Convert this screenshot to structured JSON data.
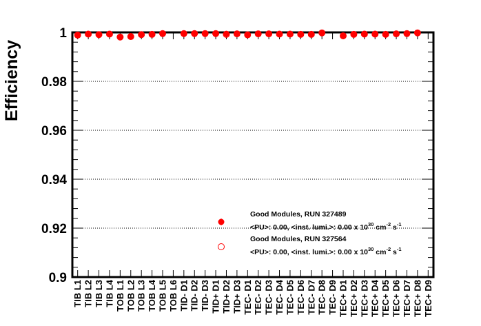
{
  "chart_data": {
    "type": "scatter",
    "ylabel": "Efficiency",
    "ylim": [
      0.9,
      1.0
    ],
    "yticks": [
      0.9,
      0.92,
      0.94,
      0.96,
      0.98,
      1.0
    ],
    "ytick_labels": [
      "0.9",
      "0.92",
      "0.94",
      "0.96",
      "0.98",
      "1"
    ],
    "grid": "horizontal dotted",
    "categories": [
      "TIB L1",
      "TIB L2",
      "TIB L3",
      "TIB L4",
      "TOB L1",
      "TOB L2",
      "TOB L3",
      "TOB L4",
      "TOB L5",
      "TOB L6",
      "TID- D1",
      "TID- D2",
      "TID- D3",
      "TID+ D1",
      "TID+ D2",
      "TID+ D3",
      "TEC- D1",
      "TEC- D2",
      "TEC- D3",
      "TEC- D4",
      "TEC- D5",
      "TEC- D6",
      "TEC- D7",
      "TEC- D8",
      "TEC- D9",
      "TEC+ D1",
      "TEC+ D2",
      "TEC+ D3",
      "TEC+ D4",
      "TEC+ D5",
      "TEC+ D6",
      "TEC+ D7",
      "TEC+ D8",
      "TEC+ D9"
    ],
    "series": [
      {
        "name": "Good Modules, RUN 327489",
        "subtitle": "<PU>: 0.00, <inst. lumi.>: 0.00 x 10",
        "marker": "filled",
        "color": "#ff0000",
        "values": [
          0.9989,
          0.9993,
          0.9991,
          0.9993,
          0.9981,
          0.9983,
          0.9991,
          0.9992,
          0.9995,
          null,
          0.9995,
          0.9995,
          0.9995,
          0.9995,
          0.9994,
          0.9994,
          0.999,
          0.9994,
          0.9994,
          0.9993,
          0.9993,
          0.9992,
          0.9992,
          0.9998,
          null,
          0.9986,
          0.9992,
          0.9993,
          0.9993,
          0.9992,
          0.9994,
          0.9995,
          0.9998,
          null
        ]
      },
      {
        "name": "Good Modules, RUN 327564",
        "subtitle": "<PU>: 0.00, <inst. lumi.>: 0.00 x 10",
        "marker": "open",
        "color": "#ff0000",
        "values": [
          0.9989,
          0.9993,
          0.9991,
          0.9993,
          0.9981,
          0.9983,
          0.9991,
          0.9992,
          0.9995,
          null,
          0.9995,
          0.9995,
          0.9995,
          0.9995,
          0.9992,
          0.9994,
          0.999,
          0.9994,
          0.9994,
          0.9993,
          0.9993,
          0.9992,
          0.9992,
          0.9998,
          null,
          0.9986,
          0.9992,
          0.9993,
          0.9993,
          0.9992,
          0.9994,
          0.9995,
          0.9998,
          null
        ]
      }
    ],
    "legend": {
      "position": "lower-right",
      "unit_sup_exp": "30",
      "unit_rest": " cm",
      "unit_sup_cm": "-2",
      "unit_s": " s",
      "unit_sup_s": "-1"
    }
  }
}
